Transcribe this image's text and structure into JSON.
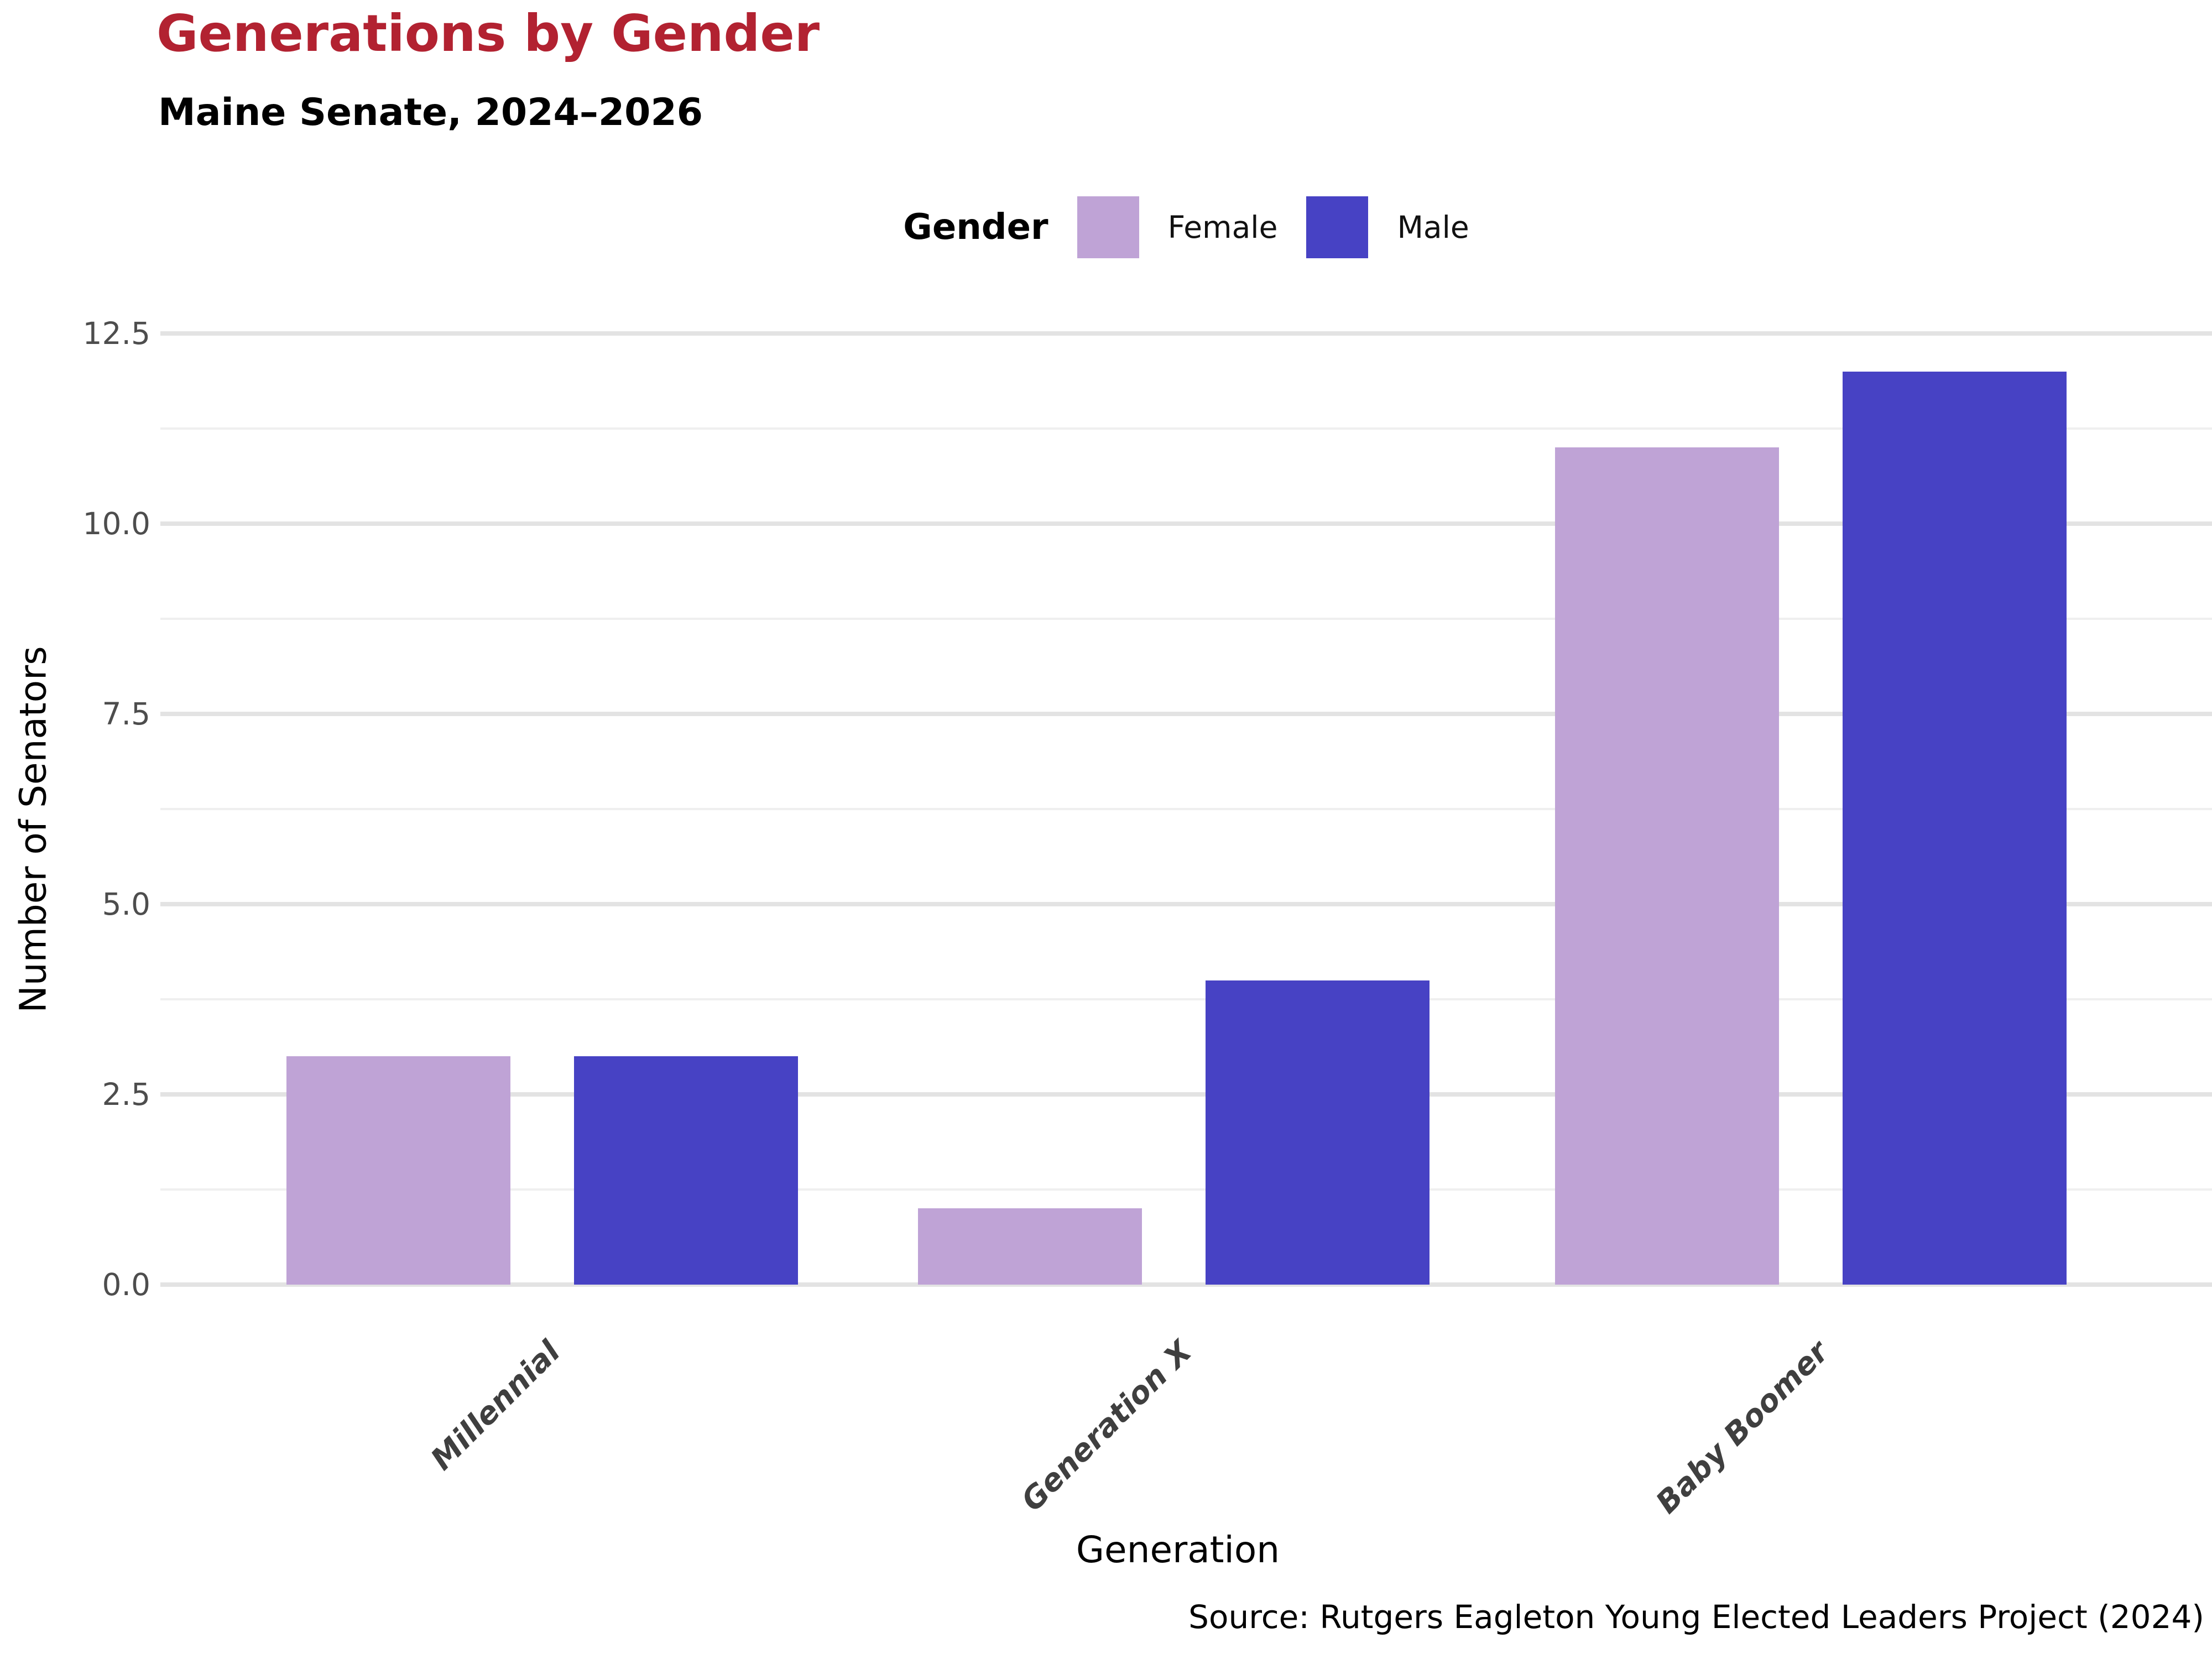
{
  "header": {
    "title": "Generations by Gender",
    "subtitle": "Maine Senate, 2024–2026"
  },
  "legend": {
    "title": "Gender",
    "entries": [
      {
        "label": "Female",
        "color": "#bfa3d6"
      },
      {
        "label": "Male",
        "color": "#4742c4"
      }
    ]
  },
  "chart_data": {
    "type": "bar",
    "title": "Generations by Gender",
    "subtitle": "Maine Senate, 2024–2026",
    "categories": [
      "Millennial",
      "Generation X",
      "Baby Boomer"
    ],
    "series": [
      {
        "name": "Female",
        "color": "#bfa3d6",
        "values": [
          3,
          1,
          11
        ]
      },
      {
        "name": "Male",
        "color": "#4742c4",
        "values": [
          3,
          4,
          12
        ]
      }
    ],
    "xlabel": "Generation",
    "ylabel": "Number of Senators",
    "ylim": [
      0,
      12.5
    ],
    "yticks": [
      0,
      2.5,
      5,
      7.5,
      10,
      12.5
    ],
    "ytick_labels": [
      "0.0",
      "2.5",
      "5.0",
      "7.5",
      "10.0",
      "12.5"
    ],
    "minor_gridlines": true,
    "grid": "horizontal",
    "legend_position": "top"
  },
  "footer": {
    "source": "Source: Rutgers Eagleton Young Elected Leaders Project (2024)"
  },
  "colors": {
    "title": "#b22231",
    "grid_major": "#e3e3e3",
    "grid_minor": "#efefef",
    "y_tick_label": "#4d4d4d",
    "x_tick_label": "#3f3f3f"
  }
}
